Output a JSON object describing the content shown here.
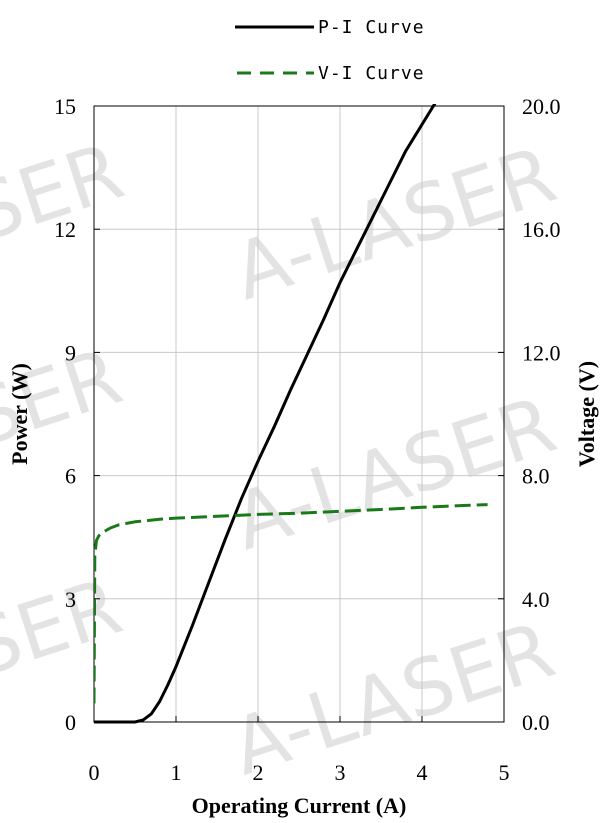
{
  "watermark": {
    "text": "A-LASER",
    "partial_text": "SER"
  },
  "legend": [
    {
      "label": "P-I Curve",
      "color": "#000000",
      "dash": "solid"
    },
    {
      "label": "V-I Curve",
      "color": "#1a7a1a",
      "dash": "dashed"
    }
  ],
  "chart_data": {
    "type": "line",
    "xlabel": "Operating Current (A)",
    "ylabel": "Power (W)",
    "y2label": "Voltage (V)",
    "xlim": [
      0,
      5
    ],
    "ylim": [
      0,
      15
    ],
    "y2lim": [
      0,
      20
    ],
    "x_ticks": [
      "0",
      "1",
      "2",
      "3",
      "4",
      "5"
    ],
    "y_ticks": [
      "0",
      "3",
      "6",
      "9",
      "12",
      "15"
    ],
    "y2_ticks": [
      "0.0",
      "4.0",
      "8.0",
      "12.0",
      "16.0",
      "20.0"
    ],
    "grid": true,
    "legend_position": "top",
    "series": [
      {
        "name": "P-I Curve",
        "axis": "left",
        "color": "#000000",
        "x": [
          0,
          0.5,
          0.6,
          0.7,
          0.8,
          0.9,
          1.0,
          1.2,
          1.4,
          1.6,
          1.8,
          2.0,
          2.2,
          2.4,
          2.6,
          2.8,
          3.0,
          3.2,
          3.4,
          3.6,
          3.8,
          4.0,
          4.2,
          4.4,
          4.55
        ],
        "y": [
          0,
          0,
          0.05,
          0.2,
          0.5,
          0.9,
          1.35,
          2.35,
          3.4,
          4.45,
          5.45,
          6.35,
          7.2,
          8.1,
          8.95,
          9.8,
          10.7,
          11.5,
          12.3,
          13.1,
          13.9,
          14.55,
          15.2,
          15.9,
          16.5
        ]
      },
      {
        "name": "V-I Curve",
        "axis": "right",
        "color": "#1a7a1a",
        "x": [
          0,
          0.01,
          0.03,
          0.06,
          0.1,
          0.2,
          0.3,
          0.5,
          0.8,
          1.0,
          1.5,
          2.0,
          2.5,
          3.0,
          3.5,
          4.0,
          4.5,
          4.8
        ],
        "y": [
          0.6,
          5.4,
          5.9,
          6.05,
          6.15,
          6.3,
          6.4,
          6.5,
          6.58,
          6.62,
          6.68,
          6.74,
          6.78,
          6.84,
          6.9,
          6.97,
          7.03,
          7.06
        ]
      }
    ]
  }
}
